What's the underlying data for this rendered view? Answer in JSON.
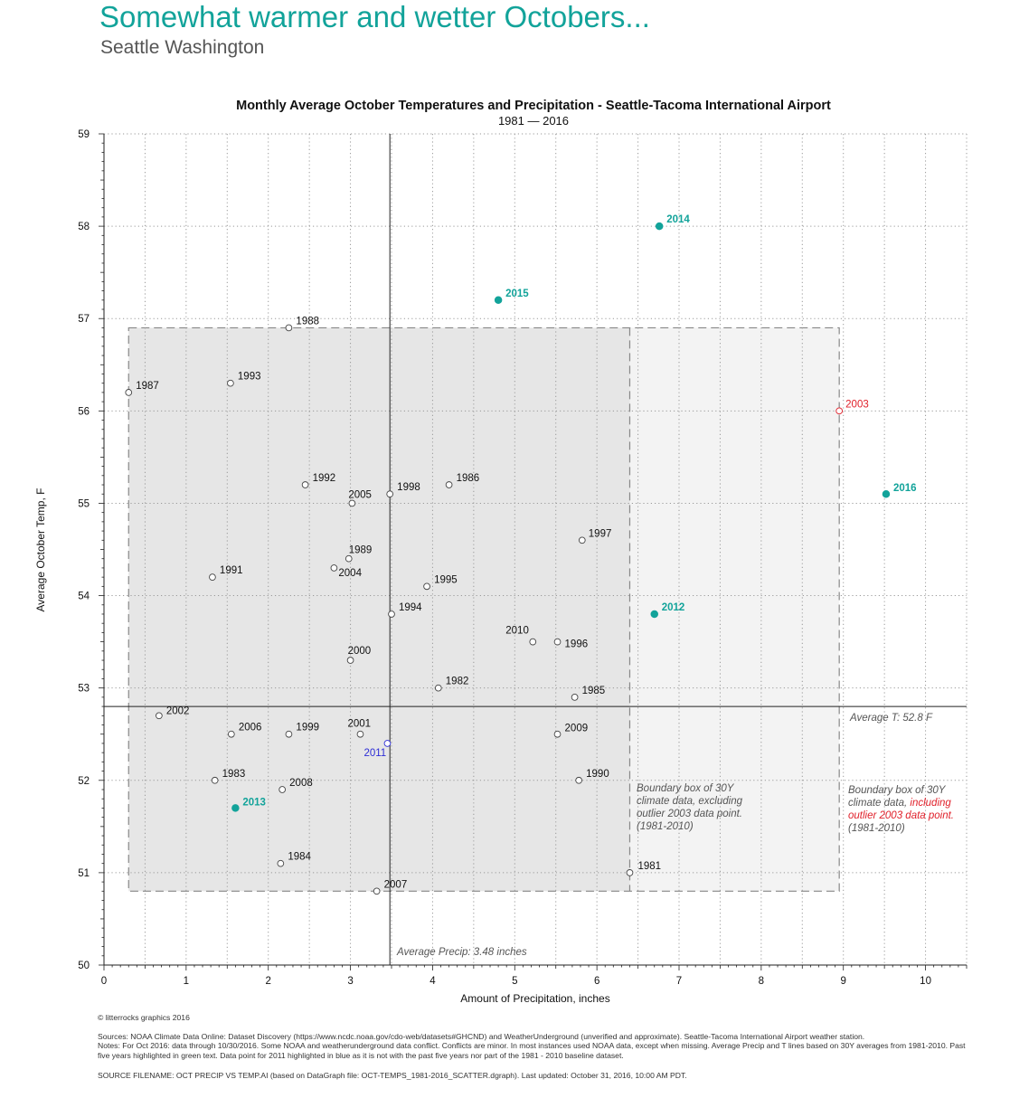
{
  "header": {
    "title": "Somewhat warmer and wetter Octobers...",
    "subtitle": "Seattle Washington"
  },
  "chart_data": {
    "type": "scatter",
    "title": "Monthly Average October Temperatures and Precipitation - Seattle-Tacoma International Airport",
    "subtitle": "1981 — 2016",
    "xlabel": "Amount of Precipitation, inches",
    "ylabel": "Average October Temp, F",
    "xlim": [
      0,
      10.5
    ],
    "ylim": [
      50,
      59
    ],
    "xticks": [
      0,
      1,
      2,
      3,
      4,
      5,
      6,
      7,
      8,
      9,
      10
    ],
    "yticks": [
      50,
      51,
      52,
      53,
      54,
      55,
      56,
      57,
      58,
      59
    ],
    "grid": true,
    "colors": {
      "recent": "#12a39a",
      "outlier": "#e0202a",
      "blue": "#2d2dd6",
      "baseline": "#444444",
      "box_inner": "#e6e6e6",
      "box_outer": "#f3f3f3"
    },
    "points": [
      {
        "year": "1981",
        "x": 6.4,
        "y": 51.0,
        "group": "baseline"
      },
      {
        "year": "1982",
        "x": 4.07,
        "y": 53.0,
        "group": "baseline"
      },
      {
        "year": "1983",
        "x": 1.35,
        "y": 52.0,
        "group": "baseline"
      },
      {
        "year": "1984",
        "x": 2.15,
        "y": 51.1,
        "group": "baseline"
      },
      {
        "year": "1985",
        "x": 5.73,
        "y": 52.9,
        "group": "baseline"
      },
      {
        "year": "1986",
        "x": 4.2,
        "y": 55.2,
        "group": "baseline"
      },
      {
        "year": "1987",
        "x": 0.3,
        "y": 56.2,
        "group": "baseline"
      },
      {
        "year": "1988",
        "x": 2.25,
        "y": 56.9,
        "group": "baseline"
      },
      {
        "year": "1989",
        "x": 2.98,
        "y": 54.4,
        "group": "baseline"
      },
      {
        "year": "1990",
        "x": 5.78,
        "y": 52.0,
        "group": "baseline"
      },
      {
        "year": "1991",
        "x": 1.32,
        "y": 54.2,
        "group": "baseline"
      },
      {
        "year": "1992",
        "x": 2.45,
        "y": 55.2,
        "group": "baseline"
      },
      {
        "year": "1993",
        "x": 1.54,
        "y": 56.3,
        "group": "baseline"
      },
      {
        "year": "1994",
        "x": 3.5,
        "y": 53.8,
        "group": "baseline"
      },
      {
        "year": "1995",
        "x": 3.93,
        "y": 54.1,
        "group": "baseline"
      },
      {
        "year": "1996",
        "x": 5.52,
        "y": 53.5,
        "group": "baseline"
      },
      {
        "year": "1997",
        "x": 5.82,
        "y": 54.6,
        "group": "baseline"
      },
      {
        "year": "1998",
        "x": 3.48,
        "y": 55.1,
        "group": "baseline"
      },
      {
        "year": "1999",
        "x": 2.25,
        "y": 52.5,
        "group": "baseline"
      },
      {
        "year": "2000",
        "x": 3.0,
        "y": 53.3,
        "group": "baseline"
      },
      {
        "year": "2001",
        "x": 3.12,
        "y": 52.5,
        "group": "baseline"
      },
      {
        "year": "2002",
        "x": 0.67,
        "y": 52.7,
        "group": "baseline"
      },
      {
        "year": "2003",
        "x": 8.95,
        "y": 56.0,
        "group": "outlier"
      },
      {
        "year": "2004",
        "x": 2.8,
        "y": 54.3,
        "group": "baseline"
      },
      {
        "year": "2005",
        "x": 3.02,
        "y": 55.0,
        "group": "baseline"
      },
      {
        "year": "2006",
        "x": 1.55,
        "y": 52.5,
        "group": "baseline"
      },
      {
        "year": "2007",
        "x": 3.32,
        "y": 50.8,
        "group": "baseline"
      },
      {
        "year": "2008",
        "x": 2.17,
        "y": 51.9,
        "group": "baseline"
      },
      {
        "year": "2009",
        "x": 5.52,
        "y": 52.5,
        "group": "baseline"
      },
      {
        "year": "2010",
        "x": 5.22,
        "y": 53.5,
        "group": "baseline"
      },
      {
        "year": "2011",
        "x": 3.45,
        "y": 52.4,
        "group": "blue"
      },
      {
        "year": "2012",
        "x": 6.7,
        "y": 53.8,
        "group": "recent"
      },
      {
        "year": "2013",
        "x": 1.6,
        "y": 51.7,
        "group": "recent"
      },
      {
        "year": "2014",
        "x": 6.76,
        "y": 58.0,
        "group": "recent"
      },
      {
        "year": "2015",
        "x": 4.8,
        "y": 57.2,
        "group": "recent"
      },
      {
        "year": "2016",
        "x": 9.52,
        "y": 55.1,
        "group": "recent"
      }
    ],
    "reference_lines": {
      "avg_temp": 52.8,
      "avg_temp_label": "Average T: 52.8 F",
      "avg_precip": 3.48,
      "avg_precip_label": "Average Precip: 3.48 inches"
    },
    "boxes": {
      "excluding": {
        "x": [
          0.3,
          6.4
        ],
        "y": [
          50.8,
          56.9
        ],
        "lines": [
          "Boundary box of 30Y",
          "climate data, excluding",
          "outlier 2003 data point.",
          "(1981-2010)"
        ]
      },
      "including": {
        "x": [
          0.3,
          8.95
        ],
        "y": [
          50.8,
          56.9
        ],
        "line1": "Boundary box of 30Y",
        "line2_plain": "climate data, ",
        "line2_red": "including",
        "line3_red": "outlier 2003 data point.",
        "line4": "(1981-2010)"
      }
    }
  },
  "footer": {
    "credit": "© litterrocks graphics 2016",
    "sources": "Sources: NOAA Climate Data Online: Dataset Discovery (https://www.ncdc.noaa.gov/cdo-web/datasets#GHCND) and WeatherUnderground (unverified and approximate).  Seattle-Tacoma International Airport weather station.",
    "notes": "Notes: For Oct 2016: data through 10/30/2016.  Some NOAA and weatherunderground data conflict.  Conflicts are minor.  In most instances used NOAA data, except when missing.   Average Precip and T lines based on 30Y averages from 1981-2010.  Past five years highlighted in green text.  Data point for 2011 highlighted in blue as it is not with the past five years nor part of the 1981 - 2010 baseline dataset.",
    "filename": "SOURCE FILENAME: OCT PRECIP VS TEMP.AI (based on DataGraph file: OCT-TEMPS_1981-2016_SCATTER.dgraph).  Last updated: October 31, 2016, 10:00 AM PDT."
  }
}
